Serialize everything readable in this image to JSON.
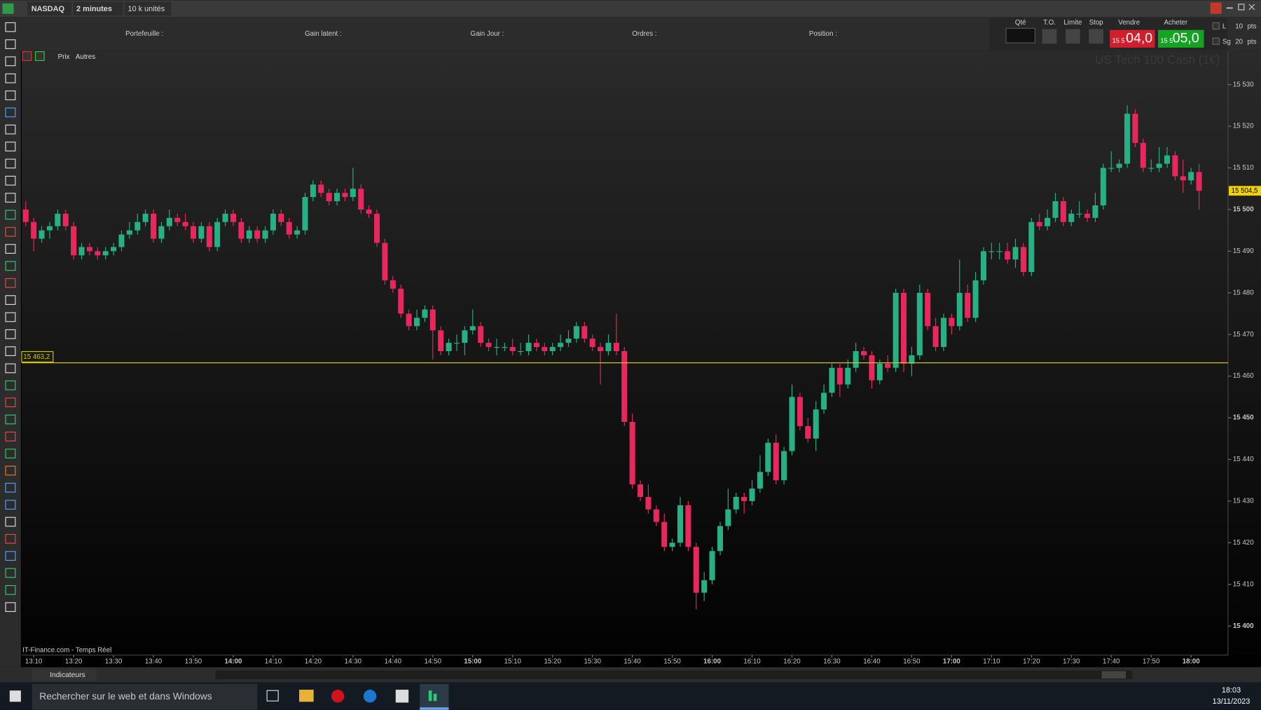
{
  "toolbar": {
    "instrument": "NASDAQ",
    "timeframe": "2 minutes",
    "size": "10 k unités"
  },
  "account_bar": {
    "labels": [
      "Portefeuille :",
      "Gain latent :",
      "Gain Jour :",
      "Ordres :",
      "Position :"
    ]
  },
  "trade_panel": {
    "qty": "Qté",
    "to": "T.O.",
    "limit": "Limite",
    "stop": "Stop",
    "sell": "Vendre",
    "buy": "Acheter",
    "sell_prefix": "15 5",
    "sell_price": "04,0",
    "buy_prefix": "15 5",
    "buy_price": "05,0",
    "l": "L",
    "l_value": 10,
    "l_unit": "pts",
    "sg": "Sg",
    "sg_value": 20,
    "sg_unit": "pts"
  },
  "chart_tabs": [
    "Prix",
    "Autres"
  ],
  "chart_data": {
    "type": "candlestick",
    "watermark": "US Tech 100 Cash (1€)",
    "source": "IT-Finance.com - Temps Réel",
    "up_color": "#26b083",
    "down_color": "#e8285c",
    "categories": [
      null,
      "13:10",
      null,
      null,
      null,
      null,
      "13:20",
      null,
      null,
      null,
      null,
      "13:30",
      null,
      null,
      null,
      null,
      "13:40",
      null,
      null,
      null,
      null,
      "13:50",
      null,
      null,
      null,
      null,
      "14:00",
      null,
      null,
      null,
      null,
      "14:10",
      null,
      null,
      null,
      null,
      "14:20",
      null,
      null,
      null,
      null,
      "14:30",
      null,
      null,
      null,
      null,
      "14:40",
      null,
      null,
      null,
      null,
      "14:50",
      null,
      null,
      null,
      null,
      "15:00",
      null,
      null,
      null,
      null,
      "15:10",
      null,
      null,
      null,
      null,
      "15:20",
      null,
      null,
      null,
      null,
      "15:30",
      null,
      null,
      null,
      null,
      "15:40",
      null,
      null,
      null,
      null,
      "15:50",
      null,
      null,
      null,
      null,
      "16:00",
      null,
      null,
      null,
      null,
      "16:10",
      null,
      null,
      null,
      null,
      "16:20",
      null,
      null,
      null,
      null,
      "16:30",
      null,
      null,
      null,
      null,
      "16:40",
      null,
      null,
      null,
      null,
      "16:50",
      null,
      null,
      null,
      null,
      "17:00",
      null,
      null,
      null,
      null,
      "17:10",
      null,
      null,
      null,
      null,
      "17:20",
      null,
      null,
      null,
      null,
      "17:30",
      null,
      null,
      null,
      null,
      "17:40",
      null,
      null,
      null,
      null,
      "17:50",
      null,
      null,
      null,
      null,
      "18:00",
      null
    ],
    "candles": [
      [
        15500,
        15502,
        15496,
        15497
      ],
      [
        15497,
        15498,
        15490,
        15493
      ],
      [
        15493,
        15496,
        15492,
        15495
      ],
      [
        15495,
        15497,
        15493,
        15496
      ],
      [
        15496,
        15500,
        15495,
        15499
      ],
      [
        15499,
        15500,
        15495,
        15496
      ],
      [
        15496,
        15497,
        15488,
        15489
      ],
      [
        15489,
        15492,
        15488,
        15491
      ],
      [
        15491,
        15492,
        15489,
        15490
      ],
      [
        15490,
        15491,
        15488,
        15489
      ],
      [
        15489,
        15491,
        15488,
        15490
      ],
      [
        15490,
        15492,
        15489,
        15491
      ],
      [
        15491,
        15495,
        15490,
        15494
      ],
      [
        15494,
        15497,
        15493,
        15495
      ],
      [
        15495,
        15499,
        15494,
        15497
      ],
      [
        15497,
        15500,
        15496,
        15499
      ],
      [
        15499,
        15500,
        15492,
        15493
      ],
      [
        15493,
        15497,
        15492,
        15496
      ],
      [
        15496,
        15500,
        15495,
        15498
      ],
      [
        15498,
        15499,
        15496,
        15497
      ],
      [
        15497,
        15499,
        15495,
        15496
      ],
      [
        15496,
        15497,
        15492,
        15493
      ],
      [
        15493,
        15497,
        15492,
        15496
      ],
      [
        15496,
        15497,
        15490,
        15491
      ],
      [
        15491,
        15498,
        15490,
        15497
      ],
      [
        15497,
        15500,
        15496,
        15499
      ],
      [
        15499,
        15500,
        15496,
        15497
      ],
      [
        15497,
        15498,
        15492,
        15493
      ],
      [
        15493,
        15496,
        15492,
        15495
      ],
      [
        15495,
        15496,
        15492,
        15493
      ],
      [
        15493,
        15496,
        15492,
        15495
      ],
      [
        15495,
        15500,
        15494,
        15499
      ],
      [
        15499,
        15500,
        15496,
        15497
      ],
      [
        15497,
        15498,
        15493,
        15494
      ],
      [
        15494,
        15496,
        15493,
        15495
      ],
      [
        15495,
        15504,
        15494,
        15503
      ],
      [
        15503,
        15507,
        15502,
        15506
      ],
      [
        15506,
        15507,
        15503,
        15504
      ],
      [
        15504,
        15505,
        15501,
        15502
      ],
      [
        15502,
        15505,
        15501,
        15504
      ],
      [
        15504,
        15505,
        15502,
        15503
      ],
      [
        15503,
        15510,
        15502,
        15505
      ],
      [
        15505,
        15506,
        15499,
        15500
      ],
      [
        15500,
        15501,
        15498,
        15499
      ],
      [
        15499,
        15500,
        15491,
        15492
      ],
      [
        15492,
        15493,
        15482,
        15483
      ],
      [
        15483,
        15484,
        15480,
        15481
      ],
      [
        15481,
        15482,
        15474,
        15475
      ],
      [
        15475,
        15476,
        15471,
        15472
      ],
      [
        15472,
        15476,
        15471,
        15474
      ],
      [
        15474,
        15477,
        15473,
        15476
      ],
      [
        15476,
        15477,
        15464,
        15471
      ],
      [
        15471,
        15472,
        15465,
        15466
      ],
      [
        15466,
        15469,
        15465,
        15468
      ],
      [
        15468,
        15470,
        15466,
        15468
      ],
      [
        15468,
        15472,
        15465,
        15471
      ],
      [
        15471,
        15476,
        15470,
        15472
      ],
      [
        15472,
        15473,
        15467,
        15468
      ],
      [
        15468,
        15469,
        15466,
        15467
      ],
      [
        15467,
        15469,
        15465,
        15467
      ],
      [
        15467,
        15468,
        15466,
        15467
      ],
      [
        15467,
        15469,
        15465,
        15466
      ],
      [
        15466,
        15468,
        15465,
        15466
      ],
      [
        15466,
        15470,
        15465,
        15468
      ],
      [
        15468,
        15469,
        15466,
        15467
      ],
      [
        15467,
        15468,
        15465,
        15466
      ],
      [
        15466,
        15468,
        15465,
        15467
      ],
      [
        15467,
        15470,
        15466,
        15468
      ],
      [
        15468,
        15471,
        15467,
        15469
      ],
      [
        15469,
        15473,
        15468,
        15472
      ],
      [
        15472,
        15473,
        15468,
        15469
      ],
      [
        15469,
        15470,
        15466,
        15467
      ],
      [
        15467,
        15468,
        15458,
        15466
      ],
      [
        15466,
        15470,
        15465,
        15468
      ],
      [
        15468,
        15475,
        15465,
        15466
      ],
      [
        15466,
        15467,
        15448,
        15449
      ],
      [
        15449,
        15451,
        15433,
        15434
      ],
      [
        15434,
        15435,
        15430,
        15431
      ],
      [
        15431,
        15434,
        15427,
        15428
      ],
      [
        15428,
        15429,
        15424,
        15425
      ],
      [
        15425,
        15427,
        15418,
        15419
      ],
      [
        15419,
        15421,
        15418,
        15420
      ],
      [
        15420,
        15431,
        15419,
        15429
      ],
      [
        15429,
        15430,
        15418,
        15419
      ],
      [
        15419,
        15420,
        15404,
        15408
      ],
      [
        15408,
        15413,
        15406,
        15411
      ],
      [
        15411,
        15419,
        15410,
        15418
      ],
      [
        15418,
        15425,
        15417,
        15424
      ],
      [
        15424,
        15433,
        15423,
        15428
      ],
      [
        15428,
        15432,
        15427,
        15431
      ],
      [
        15431,
        15432,
        15427,
        15430
      ],
      [
        15430,
        15435,
        15429,
        15433
      ],
      [
        15433,
        15441,
        15432,
        15437
      ],
      [
        15437,
        15445,
        15436,
        15444
      ],
      [
        15444,
        15446,
        15434,
        15435
      ],
      [
        15435,
        15443,
        15434,
        15442
      ],
      [
        15442,
        15458,
        15441,
        15455
      ],
      [
        15455,
        15456,
        15447,
        15448
      ],
      [
        15448,
        15450,
        15444,
        15445
      ],
      [
        15445,
        15454,
        15442,
        15452
      ],
      [
        15452,
        15458,
        15451,
        15456
      ],
      [
        15456,
        15463,
        15455,
        15462
      ],
      [
        15462,
        15463,
        15455,
        15458
      ],
      [
        15458,
        15464,
        15457,
        15462
      ],
      [
        15462,
        15468,
        15461,
        15466
      ],
      [
        15466,
        15467,
        15464,
        15465
      ],
      [
        15465,
        15466,
        15457,
        15459
      ],
      [
        15459,
        15464,
        15458,
        15463
      ],
      [
        15463,
        15465,
        15461,
        15462
      ],
      [
        15462,
        15481,
        15461,
        15480
      ],
      [
        15480,
        15481,
        15461,
        15463
      ],
      [
        15463,
        15467,
        15460,
        15465
      ],
      [
        15465,
        15482,
        15464,
        15480
      ],
      [
        15480,
        15481,
        15471,
        15472
      ],
      [
        15472,
        15474,
        15466,
        15467
      ],
      [
        15467,
        15475,
        15466,
        15474
      ],
      [
        15474,
        15475,
        15470,
        15472
      ],
      [
        15472,
        15488,
        15471,
        15480
      ],
      [
        15480,
        15482,
        15473,
        15474
      ],
      [
        15474,
        15485,
        15473,
        15483
      ],
      [
        15483,
        15491,
        15482,
        15490
      ],
      [
        15490,
        15492,
        15488,
        15490
      ],
      [
        15490,
        15492,
        15488,
        15490
      ],
      [
        15490,
        15492,
        15487,
        15488
      ],
      [
        15488,
        15493,
        15486,
        15491
      ],
      [
        15491,
        15492,
        15484,
        15485
      ],
      [
        15485,
        15498,
        15484,
        15497
      ],
      [
        15497,
        15499,
        15495,
        15496
      ],
      [
        15496,
        15500,
        15495,
        15498
      ],
      [
        15498,
        15504,
        15497,
        15502
      ],
      [
        15502,
        15503,
        15496,
        15497
      ],
      [
        15497,
        15500,
        15496,
        15499
      ],
      [
        15499,
        15502,
        15498,
        15499
      ],
      [
        15499,
        15500,
        15497,
        15498
      ],
      [
        15498,
        15504,
        15497,
        15501
      ],
      [
        15501,
        15511,
        15500,
        15510
      ],
      [
        15510,
        15514,
        15509,
        15510
      ],
      [
        15510,
        15512,
        15509,
        15511
      ],
      [
        15511,
        15525,
        15510,
        15523
      ],
      [
        15523,
        15524,
        15515,
        15516
      ],
      [
        15516,
        15517,
        15509,
        15510
      ],
      [
        15510,
        15512,
        15509,
        15510
      ],
      [
        15510,
        15515,
        15509,
        15511
      ],
      [
        15511,
        15515,
        15510,
        15513
      ],
      [
        15513,
        15514,
        15507,
        15508
      ],
      [
        15508,
        15512,
        15504,
        15507
      ],
      [
        15507,
        15510,
        15506,
        15509
      ],
      [
        15509,
        15511,
        15500,
        15504.5
      ]
    ],
    "ylim": [
      15393.4,
      15538.1
    ],
    "yticks": [
      {
        "value": 15400,
        "label": "15 400"
      },
      {
        "value": 15410,
        "label": "15 410"
      },
      {
        "value": 15420,
        "label": "15 420"
      },
      {
        "value": 15430,
        "label": "15 430"
      },
      {
        "value": 15440,
        "label": "15 440"
      },
      {
        "value": 15450,
        "label": "15 450"
      },
      {
        "value": 15460,
        "label": "15 460"
      },
      {
        "value": 15470,
        "label": "15 470"
      },
      {
        "value": 15480,
        "label": "15 480"
      },
      {
        "value": 15490,
        "label": "15 490"
      },
      {
        "value": 15500,
        "label": "15 500"
      },
      {
        "value": 15510,
        "label": "15 510"
      },
      {
        "value": 15520,
        "label": "15 520"
      },
      {
        "value": 15530,
        "label": "15 530"
      }
    ],
    "reference_line": {
      "value": 15463.2,
      "label": "15 463,2",
      "color": "#cfc31e"
    },
    "last_price": {
      "value": 15504.5,
      "label": "15 504,5",
      "color": "#f2d200"
    }
  },
  "bottom_toolbar": {
    "indicators": "Indicateurs"
  },
  "taskbar": {
    "search": "Rechercher sur le web et dans Windows",
    "time": "18:03",
    "date": "13/11/2023"
  }
}
